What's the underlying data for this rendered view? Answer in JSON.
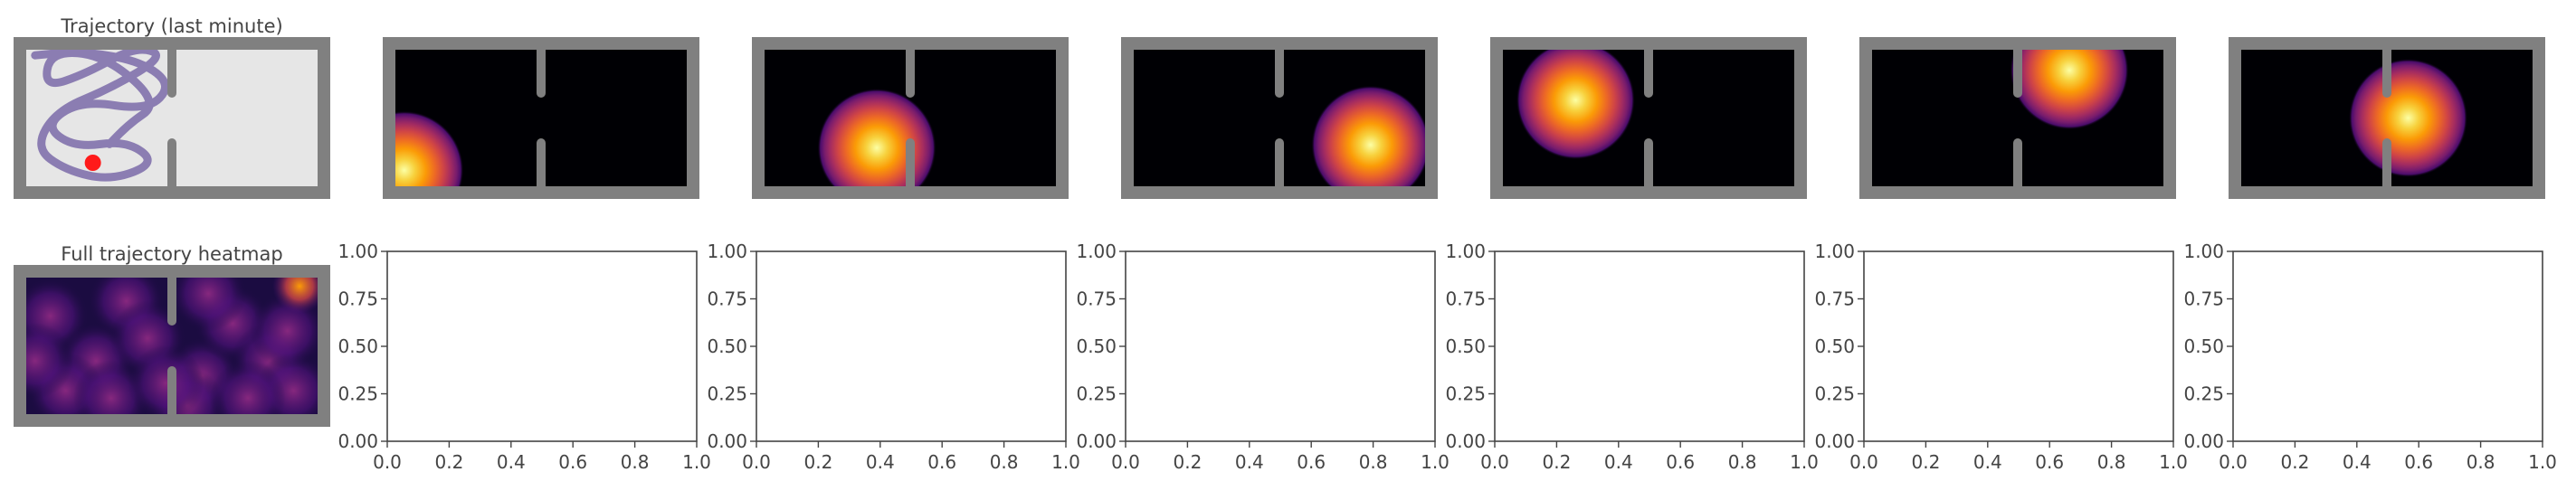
{
  "colors": {
    "wall": "#808080",
    "floor_light": "#e6e6e6",
    "floor_dark": "#000004",
    "trajectory": "#7a6aa8",
    "agent": "#ff1a1a",
    "axis": "#444444"
  },
  "chart_data": [
    {
      "id": "trajectory",
      "type": "trajectory",
      "title": "Trajectory (last minute)",
      "marker_position": [
        0.24,
        0.2
      ],
      "path_points": [
        [
          0.05,
          0.92
        ],
        [
          0.2,
          0.95
        ],
        [
          0.4,
          0.88
        ],
        [
          0.5,
          0.72
        ],
        [
          0.42,
          0.55
        ],
        [
          0.2,
          0.62
        ],
        [
          0.08,
          0.45
        ],
        [
          0.18,
          0.3
        ],
        [
          0.35,
          0.35
        ],
        [
          0.45,
          0.2
        ],
        [
          0.3,
          0.08
        ],
        [
          0.15,
          0.15
        ],
        [
          0.05,
          0.3
        ],
        [
          0.12,
          0.55
        ],
        [
          0.3,
          0.7
        ],
        [
          0.48,
          0.92
        ],
        [
          0.38,
          0.98
        ],
        [
          0.22,
          0.8
        ],
        [
          0.08,
          0.7
        ],
        [
          0.1,
          0.95
        ],
        [
          0.28,
          0.92
        ],
        [
          0.46,
          0.6
        ],
        [
          0.35,
          0.45
        ],
        [
          0.24,
          0.2
        ]
      ]
    },
    {
      "id": "field-1",
      "type": "heatmap",
      "colormap": "inferno",
      "peak": [
        0.05,
        0.15
      ],
      "radius": 0.17
    },
    {
      "id": "field-2",
      "type": "heatmap",
      "colormap": "inferno",
      "peak": [
        0.39,
        0.3
      ],
      "radius": 0.17
    },
    {
      "id": "field-3",
      "type": "heatmap",
      "colormap": "inferno",
      "peak": [
        0.8,
        0.32
      ],
      "radius": 0.17
    },
    {
      "id": "field-4",
      "type": "heatmap",
      "colormap": "inferno",
      "peak": [
        0.26,
        0.62
      ],
      "radius": 0.17
    },
    {
      "id": "field-5",
      "type": "heatmap",
      "colormap": "inferno",
      "peak": [
        0.67,
        0.82
      ],
      "radius": 0.17
    },
    {
      "id": "field-6",
      "type": "heatmap",
      "colormap": "inferno",
      "peak": [
        0.57,
        0.5
      ],
      "radius": 0.17
    },
    {
      "id": "full-heatmap",
      "type": "heatmap",
      "title": "Full trajectory heatmap",
      "colormap": "inferno",
      "hotspot": [
        0.92,
        0.9
      ]
    },
    {
      "id": "empty-1",
      "type": "line",
      "xlim": [
        0,
        1
      ],
      "ylim": [
        0,
        1
      ],
      "xticks": [
        "0.0",
        "0.2",
        "0.4",
        "0.6",
        "0.8",
        "1.0"
      ],
      "yticks": [
        "0.00",
        "0.25",
        "0.50",
        "0.75",
        "1.00"
      ]
    },
    {
      "id": "empty-2",
      "type": "line",
      "xlim": [
        0,
        1
      ],
      "ylim": [
        0,
        1
      ],
      "xticks": [
        "0.0",
        "0.2",
        "0.4",
        "0.6",
        "0.8",
        "1.0"
      ],
      "yticks": [
        "0.00",
        "0.25",
        "0.50",
        "0.75",
        "1.00"
      ]
    },
    {
      "id": "empty-3",
      "type": "line",
      "xlim": [
        0,
        1
      ],
      "ylim": [
        0,
        1
      ],
      "xticks": [
        "0.0",
        "0.2",
        "0.4",
        "0.6",
        "0.8",
        "1.0"
      ],
      "yticks": [
        "0.00",
        "0.25",
        "0.50",
        "0.75",
        "1.00"
      ]
    },
    {
      "id": "empty-4",
      "type": "line",
      "xlim": [
        0,
        1
      ],
      "ylim": [
        0,
        1
      ],
      "xticks": [
        "0.0",
        "0.2",
        "0.4",
        "0.6",
        "0.8",
        "1.0"
      ],
      "yticks": [
        "0.00",
        "0.25",
        "0.50",
        "0.75",
        "1.00"
      ]
    },
    {
      "id": "empty-5",
      "type": "line",
      "xlim": [
        0,
        1
      ],
      "ylim": [
        0,
        1
      ],
      "xticks": [
        "0.0",
        "0.2",
        "0.4",
        "0.6",
        "0.8",
        "1.0"
      ],
      "yticks": [
        "0.00",
        "0.25",
        "0.50",
        "0.75",
        "1.00"
      ]
    },
    {
      "id": "empty-6",
      "type": "line",
      "xlim": [
        0,
        1
      ],
      "ylim": [
        0,
        1
      ],
      "xticks": [
        "0.0",
        "0.2",
        "0.4",
        "0.6",
        "0.8",
        "1.0"
      ],
      "yticks": [
        "0.00",
        "0.25",
        "0.50",
        "0.75",
        "1.00"
      ]
    }
  ]
}
